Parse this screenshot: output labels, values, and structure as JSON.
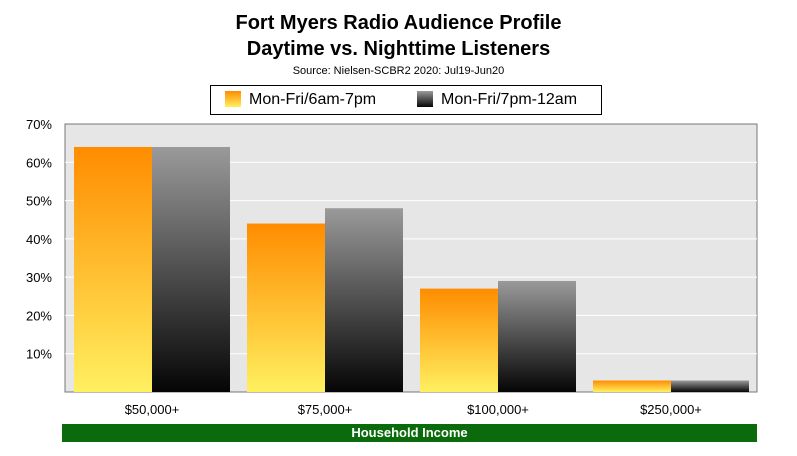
{
  "chart_data": {
    "type": "bar",
    "title": "Fort Myers Radio Audience Profile",
    "subtitle": "Daytime vs. Nighttime Listeners",
    "source": "Source: Nielsen-SCBR2 2020: Jul19-Jun20",
    "categories": [
      "$50,000+",
      "$75,000+",
      "$100,000+",
      "$250,000+"
    ],
    "series": [
      {
        "name": "Mon-Fri/6am-7pm",
        "values": [
          64,
          44,
          27,
          3
        ]
      },
      {
        "name": "Mon-Fri/7pm-12am",
        "values": [
          64,
          48,
          29,
          3
        ]
      }
    ],
    "xlabel": "Household Income",
    "ylabel": "",
    "ylim": [
      0,
      70
    ],
    "yticks": [
      "10%",
      "20%",
      "30%",
      "40%",
      "50%",
      "60%",
      "70%"
    ],
    "grid": true,
    "legend_position": "top"
  }
}
